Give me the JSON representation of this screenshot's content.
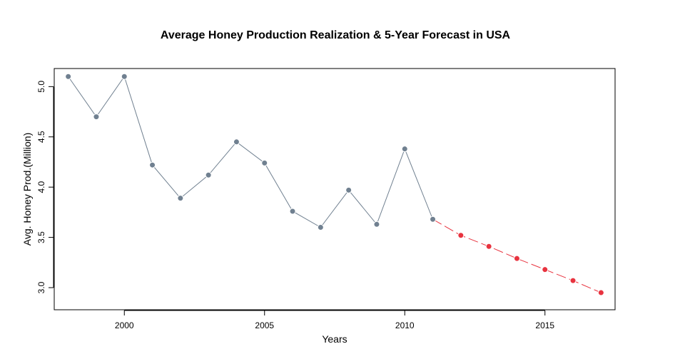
{
  "chart_data": {
    "type": "line",
    "title": "Average Honey Production Realization & 5-Year Forecast in USA",
    "xlabel": "Years",
    "ylabel": "Avg. Honey Prod.(Million)",
    "xlim": [
      1997.5,
      2017.5
    ],
    "ylim": [
      2.78,
      5.18
    ],
    "x_ticks": [
      2000,
      2005,
      2010,
      2015
    ],
    "y_ticks": [
      3.0,
      3.5,
      4.0,
      4.5,
      5.0
    ],
    "x_tick_labels": [
      "2000",
      "2005",
      "2010",
      "2015"
    ],
    "y_tick_labels": [
      "3.0",
      "3.5",
      "4.0",
      "4.5",
      "5.0"
    ],
    "grid": false,
    "series": [
      {
        "kind": "realization",
        "color": "#708090",
        "line_style": "solid",
        "x": [
          1998,
          1999,
          2000,
          2001,
          2002,
          2003,
          2004,
          2005,
          2006,
          2007,
          2008,
          2009,
          2010,
          2011
        ],
        "y": [
          5.1,
          4.7,
          5.1,
          4.22,
          3.89,
          4.12,
          4.45,
          4.24,
          3.76,
          3.6,
          3.97,
          3.63,
          4.38,
          3.68
        ]
      },
      {
        "kind": "forecast",
        "color": "#e8333f",
        "line_style": "dashed",
        "x": [
          2012,
          2013,
          2014,
          2015,
          2016,
          2017
        ],
        "y": [
          3.52,
          3.41,
          3.29,
          3.18,
          3.07,
          2.95
        ]
      }
    ]
  }
}
